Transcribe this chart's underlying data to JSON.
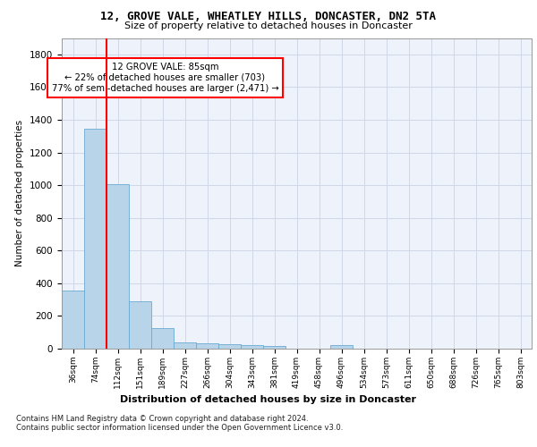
{
  "title": "12, GROVE VALE, WHEATLEY HILLS, DONCASTER, DN2 5TA",
  "subtitle": "Size of property relative to detached houses in Doncaster",
  "xlabel": "Distribution of detached houses by size in Doncaster",
  "ylabel": "Number of detached properties",
  "bar_values": [
    355,
    1345,
    1005,
    290,
    125,
    40,
    33,
    28,
    20,
    15,
    0,
    0,
    20,
    0,
    0,
    0,
    0,
    0,
    0,
    0,
    0
  ],
  "categories": [
    "36sqm",
    "74sqm",
    "112sqm",
    "151sqm",
    "189sqm",
    "227sqm",
    "266sqm",
    "304sqm",
    "343sqm",
    "381sqm",
    "419sqm",
    "458sqm",
    "496sqm",
    "534sqm",
    "573sqm",
    "611sqm",
    "650sqm",
    "688sqm",
    "726sqm",
    "765sqm",
    "803sqm"
  ],
  "bar_color": "#b8d4e8",
  "bar_edge_color": "#6aaad4",
  "property_label": "12 GROVE VALE: 85sqm",
  "annotation_line1": "← 22% of detached houses are smaller (703)",
  "annotation_line2": "77% of semi-detached houses are larger (2,471) →",
  "ylim": [
    0,
    1900
  ],
  "yticks": [
    0,
    200,
    400,
    600,
    800,
    1000,
    1200,
    1400,
    1600,
    1800
  ],
  "footer_line1": "Contains HM Land Registry data © Crown copyright and database right 2024.",
  "footer_line2": "Contains public sector information licensed under the Open Government Licence v3.0.",
  "background_color": "#ffffff",
  "axes_bg_color": "#eef2fa",
  "grid_color": "#d0d8e8"
}
